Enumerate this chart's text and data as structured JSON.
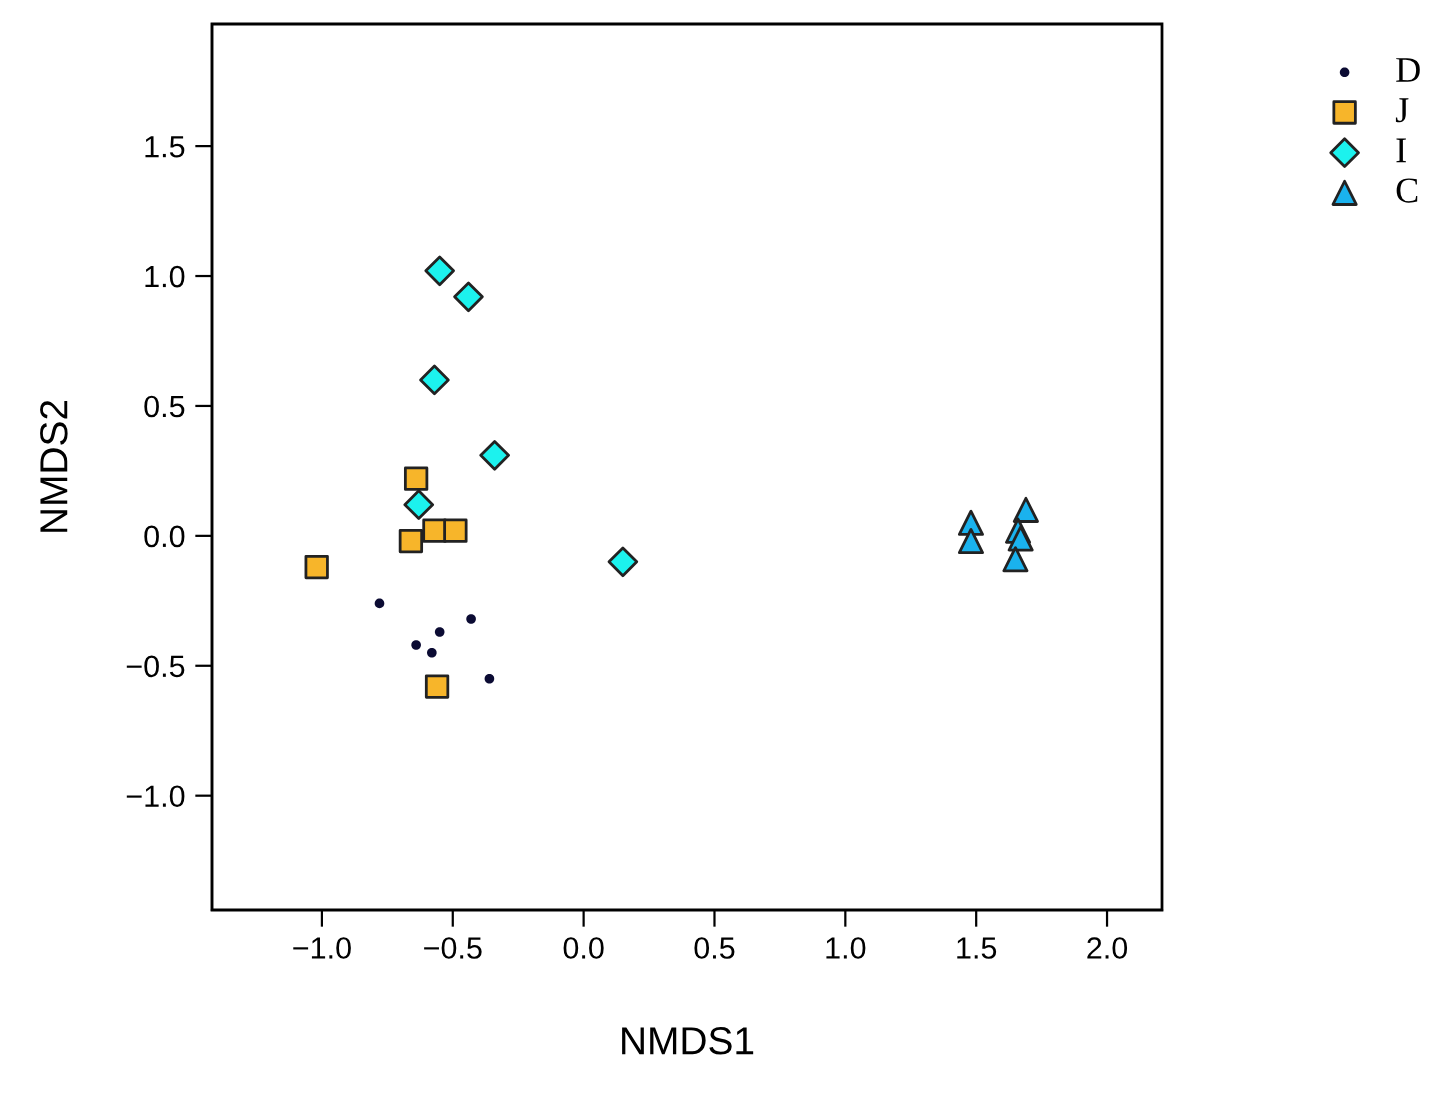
{
  "chart_data": {
    "type": "scatter",
    "xlabel": "NMDS1",
    "ylabel": "NMDS2",
    "xlim": [
      -1.42,
      2.21
    ],
    "ylim": [
      -1.44,
      1.97
    ],
    "xticks": [
      {
        "value": -1,
        "label": "−1.0"
      },
      {
        "value": -0.5,
        "label": "−0.5"
      },
      {
        "value": 0,
        "label": "0.0"
      },
      {
        "value": 0.5,
        "label": "0.5"
      },
      {
        "value": 1,
        "label": "1.0"
      },
      {
        "value": 1.5,
        "label": "1.5"
      },
      {
        "value": 2,
        "label": "2.0"
      }
    ],
    "yticks": [
      {
        "value": -1,
        "label": "−1.0"
      },
      {
        "value": -0.5,
        "label": "−0.5"
      },
      {
        "value": 0,
        "label": "0.0"
      },
      {
        "value": 0.5,
        "label": "0.5"
      },
      {
        "value": 1,
        "label": "1.0"
      },
      {
        "value": 1.5,
        "label": "1.5"
      }
    ],
    "grid": false,
    "legend": "top right",
    "series": [
      {
        "name": "D",
        "color": "#0b0b33",
        "marker": "circle",
        "x": [
          -0.78,
          -0.64,
          -0.58,
          -0.55,
          -0.43,
          -0.36
        ],
        "values": [
          -0.26,
          -0.42,
          -0.45,
          -0.37,
          -0.32,
          -0.55
        ]
      },
      {
        "name": "J",
        "color": "#f7b52a",
        "marker": "square",
        "x": [
          -0.64,
          -0.66,
          -0.57,
          -0.49,
          -1.02,
          -0.56
        ],
        "values": [
          0.22,
          -0.02,
          0.02,
          0.02,
          -0.12,
          -0.58
        ]
      },
      {
        "name": "I",
        "color": "#1cf2ee",
        "marker": "diamond",
        "x": [
          -0.55,
          -0.44,
          -0.57,
          -0.34,
          -0.63,
          0.15
        ],
        "values": [
          1.02,
          0.92,
          0.6,
          0.31,
          0.12,
          -0.1
        ]
      },
      {
        "name": "C",
        "color": "#1ab2ee",
        "marker": "triangle",
        "x": [
          1.48,
          1.48,
          1.69,
          1.66,
          1.67,
          1.65
        ],
        "values": [
          0.05,
          -0.02,
          0.1,
          0.02,
          -0.01,
          -0.09
        ]
      }
    ]
  }
}
